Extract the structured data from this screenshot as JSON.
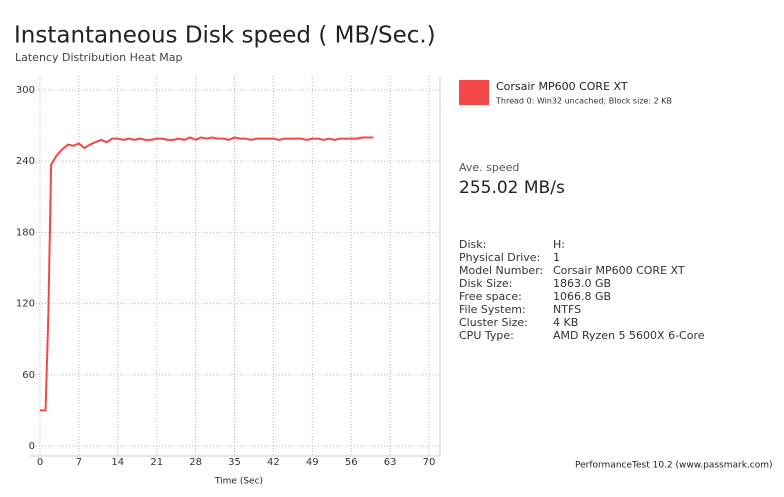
{
  "chart_data": {
    "type": "line",
    "title": "Instantaneous Disk speed ( MB/Sec.)",
    "subtitle": "Latency Distribution Heat Map",
    "x_label": "Time (Sec)",
    "x": [
      0,
      1,
      1.5,
      2,
      3,
      4,
      5,
      6,
      7,
      8,
      9,
      10,
      11,
      12,
      13,
      14,
      15,
      16,
      17,
      18,
      19,
      20,
      21,
      22,
      23,
      24,
      25,
      26,
      27,
      28,
      29,
      30,
      31,
      32,
      33,
      34,
      35,
      36,
      37,
      38,
      39,
      40,
      41,
      42,
      43,
      44,
      45,
      46,
      47,
      48,
      49,
      50,
      51,
      52,
      53,
      54,
      55,
      56,
      57,
      58,
      59,
      60
    ],
    "series": [
      {
        "name": "Corsair MP600 CORE XT",
        "description": "Thread 0: Win32 uncached; Block size: 2 KB",
        "color": "#f44848",
        "values": [
          30,
          30,
          110,
          237,
          245,
          250,
          254,
          253,
          255,
          251,
          254,
          256,
          258,
          256,
          259,
          259,
          258,
          259,
          258,
          259,
          258,
          258,
          259,
          259,
          258,
          258,
          259,
          258,
          260,
          258,
          260,
          259,
          260,
          259,
          259,
          258,
          260,
          259,
          259,
          258,
          259,
          259,
          259,
          259,
          258,
          259,
          259,
          259,
          259,
          258,
          259,
          259,
          258,
          259,
          258,
          259,
          259,
          259,
          259,
          260,
          260,
          260
        ]
      }
    ],
    "xlim": [
      0,
      70
    ],
    "xticks": [
      0,
      7,
      14,
      21,
      28,
      35,
      42,
      49,
      56,
      63,
      70
    ],
    "ylim": [
      0,
      300
    ],
    "yticks": [
      0,
      60,
      120,
      180,
      240,
      300
    ],
    "grid": true
  },
  "info_panel": {
    "average_label": "Ave. speed",
    "average_value": "255.02 MB/s",
    "details": [
      [
        "Disk:",
        "H:"
      ],
      [
        "Physical Drive:",
        "1"
      ],
      [
        "Model Number:",
        "Corsair MP600 CORE XT"
      ],
      [
        "Disk Size:",
        "1863.0 GB"
      ],
      [
        "Free space:",
        "1066.8 GB"
      ],
      [
        "File System:",
        "NTFS"
      ],
      [
        "Cluster Size:",
        "4 KB"
      ],
      [
        "CPU Type:",
        "AMD Ryzen 5 5600X 6-Core"
      ]
    ]
  },
  "footer": "PerformanceTest 10.2 (www.passmark.com)"
}
